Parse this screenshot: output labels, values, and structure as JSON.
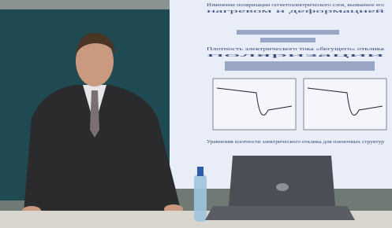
{
  "slide": {
    "lines": [
      "Изменение поляризации сегнетоэлектрического слоя, вызванное его",
      "нагревом и деформацией",
      "Плотность электрического тока «бегущего» отклика",
      "поляризации",
      "Уравнения плотности электрического отклика для пленочных структур"
    ]
  }
}
